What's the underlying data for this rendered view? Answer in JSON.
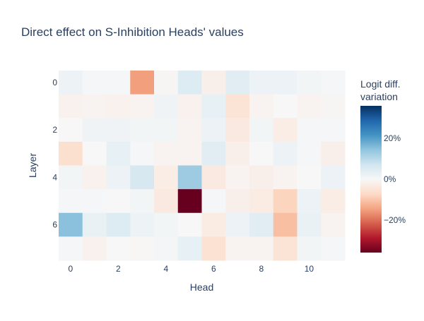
{
  "chart_data": {
    "type": "heatmap",
    "title": "Direct effect on S-Inhibition Heads' values",
    "xlabel": "Head",
    "ylabel": "Layer",
    "x": [
      0,
      1,
      2,
      3,
      4,
      5,
      6,
      7,
      8,
      9,
      10,
      11
    ],
    "y": [
      0,
      1,
      2,
      3,
      4,
      5,
      6,
      7
    ],
    "x_ticks": [
      "0",
      "2",
      "4",
      "6",
      "8",
      "10"
    ],
    "y_ticks": [
      "0",
      "2",
      "4",
      "6"
    ],
    "z": [
      [
        2,
        0.5,
        0.5,
        -15,
        -0.5,
        5,
        -2,
        4,
        2,
        2,
        1,
        0.5
      ],
      [
        -1.5,
        -1,
        -1.5,
        -1,
        1.5,
        -1.5,
        3,
        -5,
        -1,
        0,
        -1,
        -0.5
      ],
      [
        0,
        1.5,
        1.5,
        1,
        1,
        -1,
        2,
        -3.5,
        1,
        -2.5,
        0.5,
        0.5
      ],
      [
        -6,
        0,
        3,
        0.5,
        -1,
        -1,
        4,
        -2,
        0,
        2,
        0.5,
        -2
      ],
      [
        1,
        -1.5,
        2,
        6,
        -2.5,
        13,
        -3.5,
        -1,
        -2,
        -1,
        0,
        2
      ],
      [
        0.5,
        0.5,
        0,
        1,
        -3.5,
        -36,
        0.5,
        -2,
        -3,
        -8,
        2,
        -2.5
      ],
      [
        15,
        2.5,
        5,
        2,
        1,
        0,
        -3,
        2,
        4,
        -11,
        2.5,
        -1
      ],
      [
        0.3,
        -1.5,
        0,
        -0.3,
        0.8,
        3,
        -5.5,
        -1,
        -1,
        -5,
        1,
        0.5
      ]
    ],
    "zrange": [
      -36,
      36
    ],
    "colorscale": "RdBu",
    "colorbar": {
      "title_lines": [
        "Logit diff.",
        "variation"
      ],
      "ticks": [
        {
          "value": 20,
          "label": "20%"
        },
        {
          "value": 0,
          "label": "0%"
        },
        {
          "value": -20,
          "label": "−20%"
        }
      ]
    },
    "grid": false
  }
}
